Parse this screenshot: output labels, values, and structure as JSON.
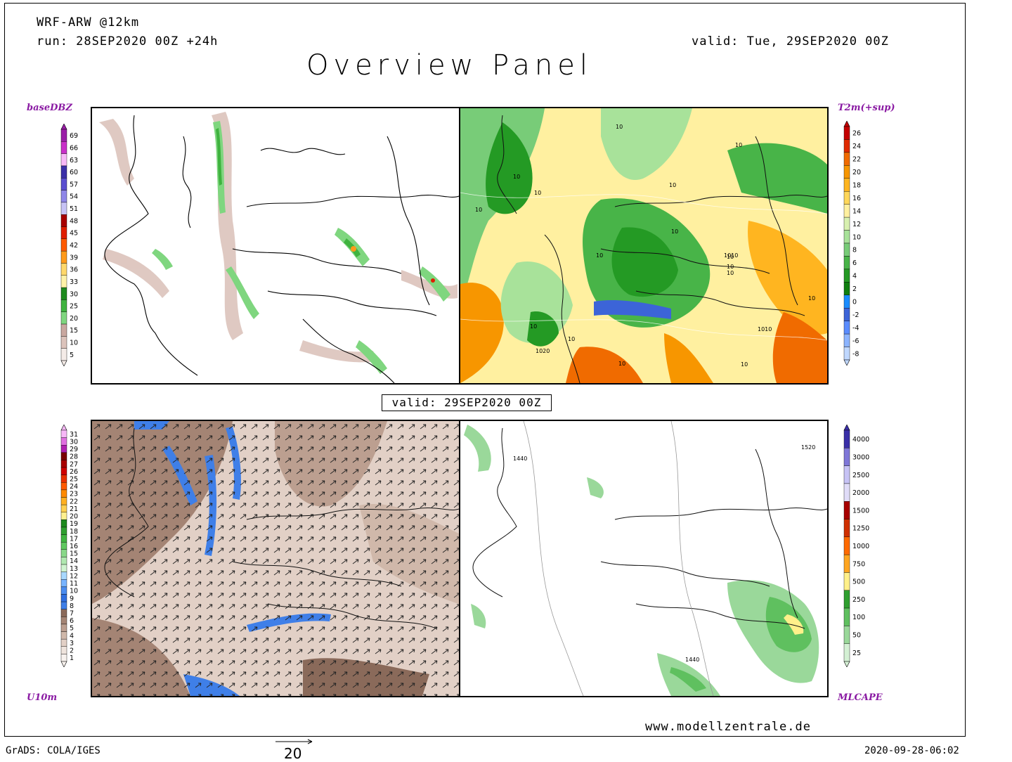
{
  "header": {
    "model": "WRF-ARW @12km",
    "run": "run: 28SEP2020 00Z +24h",
    "valid": "valid: Tue, 29SEP2020 00Z",
    "title": "Overview Panel"
  },
  "panels": {
    "top_left": {
      "label": "baseDBZ",
      "colorbar": {
        "levels": [
          "69",
          "66",
          "63",
          "60",
          "57",
          "54",
          "51",
          "48",
          "45",
          "42",
          "39",
          "36",
          "33",
          "30",
          "25",
          "20",
          "15",
          "10",
          "5"
        ],
        "colors": [
          "#9b1fa8",
          "#c930c9",
          "#f7b8f7",
          "#3a2fa8",
          "#5a4fd0",
          "#8f87e8",
          "#c7c3f5",
          "#a80000",
          "#e01e00",
          "#ff5a00",
          "#ff9a1a",
          "#ffd86b",
          "#fff2a8",
          "#1e8a1e",
          "#3fb33f",
          "#7fd67f",
          "#c9a8a0",
          "#dcc3bb",
          "#f4ebe7"
        ]
      }
    },
    "top_right": {
      "label": "T2m(+sup)",
      "colorbar": {
        "levels": [
          "26",
          "24",
          "22",
          "20",
          "18",
          "16",
          "14",
          "12",
          "10",
          "8",
          "6",
          "4",
          "2",
          "0",
          "-2",
          "-4",
          "-6",
          "-8"
        ],
        "colors": [
          "#c40000",
          "#e02a00",
          "#f06b00",
          "#f79600",
          "#ffb520",
          "#ffd75a",
          "#fff0a0",
          "#d8f0b0",
          "#a8e29a",
          "#78cc78",
          "#48b448",
          "#249a24",
          "#0f7f0f",
          "#1a8cff",
          "#3c64d8",
          "#5a8cff",
          "#8cb4ff",
          "#c0d8ff"
        ]
      }
    },
    "bottom_left": {
      "label": "U10m",
      "colorbar": {
        "levels": [
          "31",
          "30",
          "29",
          "28",
          "27",
          "26",
          "25",
          "24",
          "23",
          "22",
          "21",
          "20",
          "19",
          "18",
          "17",
          "16",
          "15",
          "14",
          "13",
          "12",
          "11",
          "10",
          "9",
          "8",
          "7",
          "6",
          "5",
          "4",
          "3",
          "2",
          "1"
        ],
        "colors": [
          "#f7b8f7",
          "#e070e0",
          "#b020b0",
          "#7a0000",
          "#a80000",
          "#d00000",
          "#e83000",
          "#ff5a00",
          "#ff8a00",
          "#ffb020",
          "#ffd050",
          "#fff090",
          "#1e8a1e",
          "#2f9f2f",
          "#40b440",
          "#60c860",
          "#88d888",
          "#b0e8b0",
          "#d0f4d0",
          "#a8d8ff",
          "#78b4ff",
          "#4a8cf0",
          "#2f6fe0",
          "#3f7fe8",
          "#8a6a5a",
          "#a48474",
          "#bc9f90",
          "#d0b8aa",
          "#e2d0c6",
          "#efe4dd",
          "#f8f2ee"
        ]
      }
    },
    "bottom_right": {
      "label": "MLCAPE",
      "colorbar": {
        "levels": [
          "4000",
          "3000",
          "2500",
          "2000",
          "1500",
          "1250",
          "1000",
          "750",
          "500",
          "250",
          "100",
          "50",
          "25"
        ],
        "colors": [
          "#3a2fa8",
          "#7f77d8",
          "#c7c3f5",
          "#e0dcf8",
          "#a80000",
          "#d03000",
          "#ff6a00",
          "#ffa520",
          "#fff08a",
          "#2f9f2f",
          "#5fc05f",
          "#9ad89a",
          "#d4f0d4"
        ]
      }
    }
  },
  "valid_box": "valid: 29SEP2020 00Z",
  "contour_labels": {
    "top_right": [
      "10",
      "10",
      "10",
      "10",
      "10",
      "10",
      "10",
      "10",
      "10",
      "10",
      "10",
      "1010",
      "10",
      "1010",
      "1020",
      "10",
      "10",
      "10",
      "10"
    ],
    "bottom_right": [
      "1440",
      "1520",
      "1440"
    ]
  },
  "footer": {
    "grads": "GrADS: COLA/IGES",
    "website": "www.modellzentrale.de",
    "timestamp": "2020-09-28-06:02",
    "scale_value": "20"
  }
}
